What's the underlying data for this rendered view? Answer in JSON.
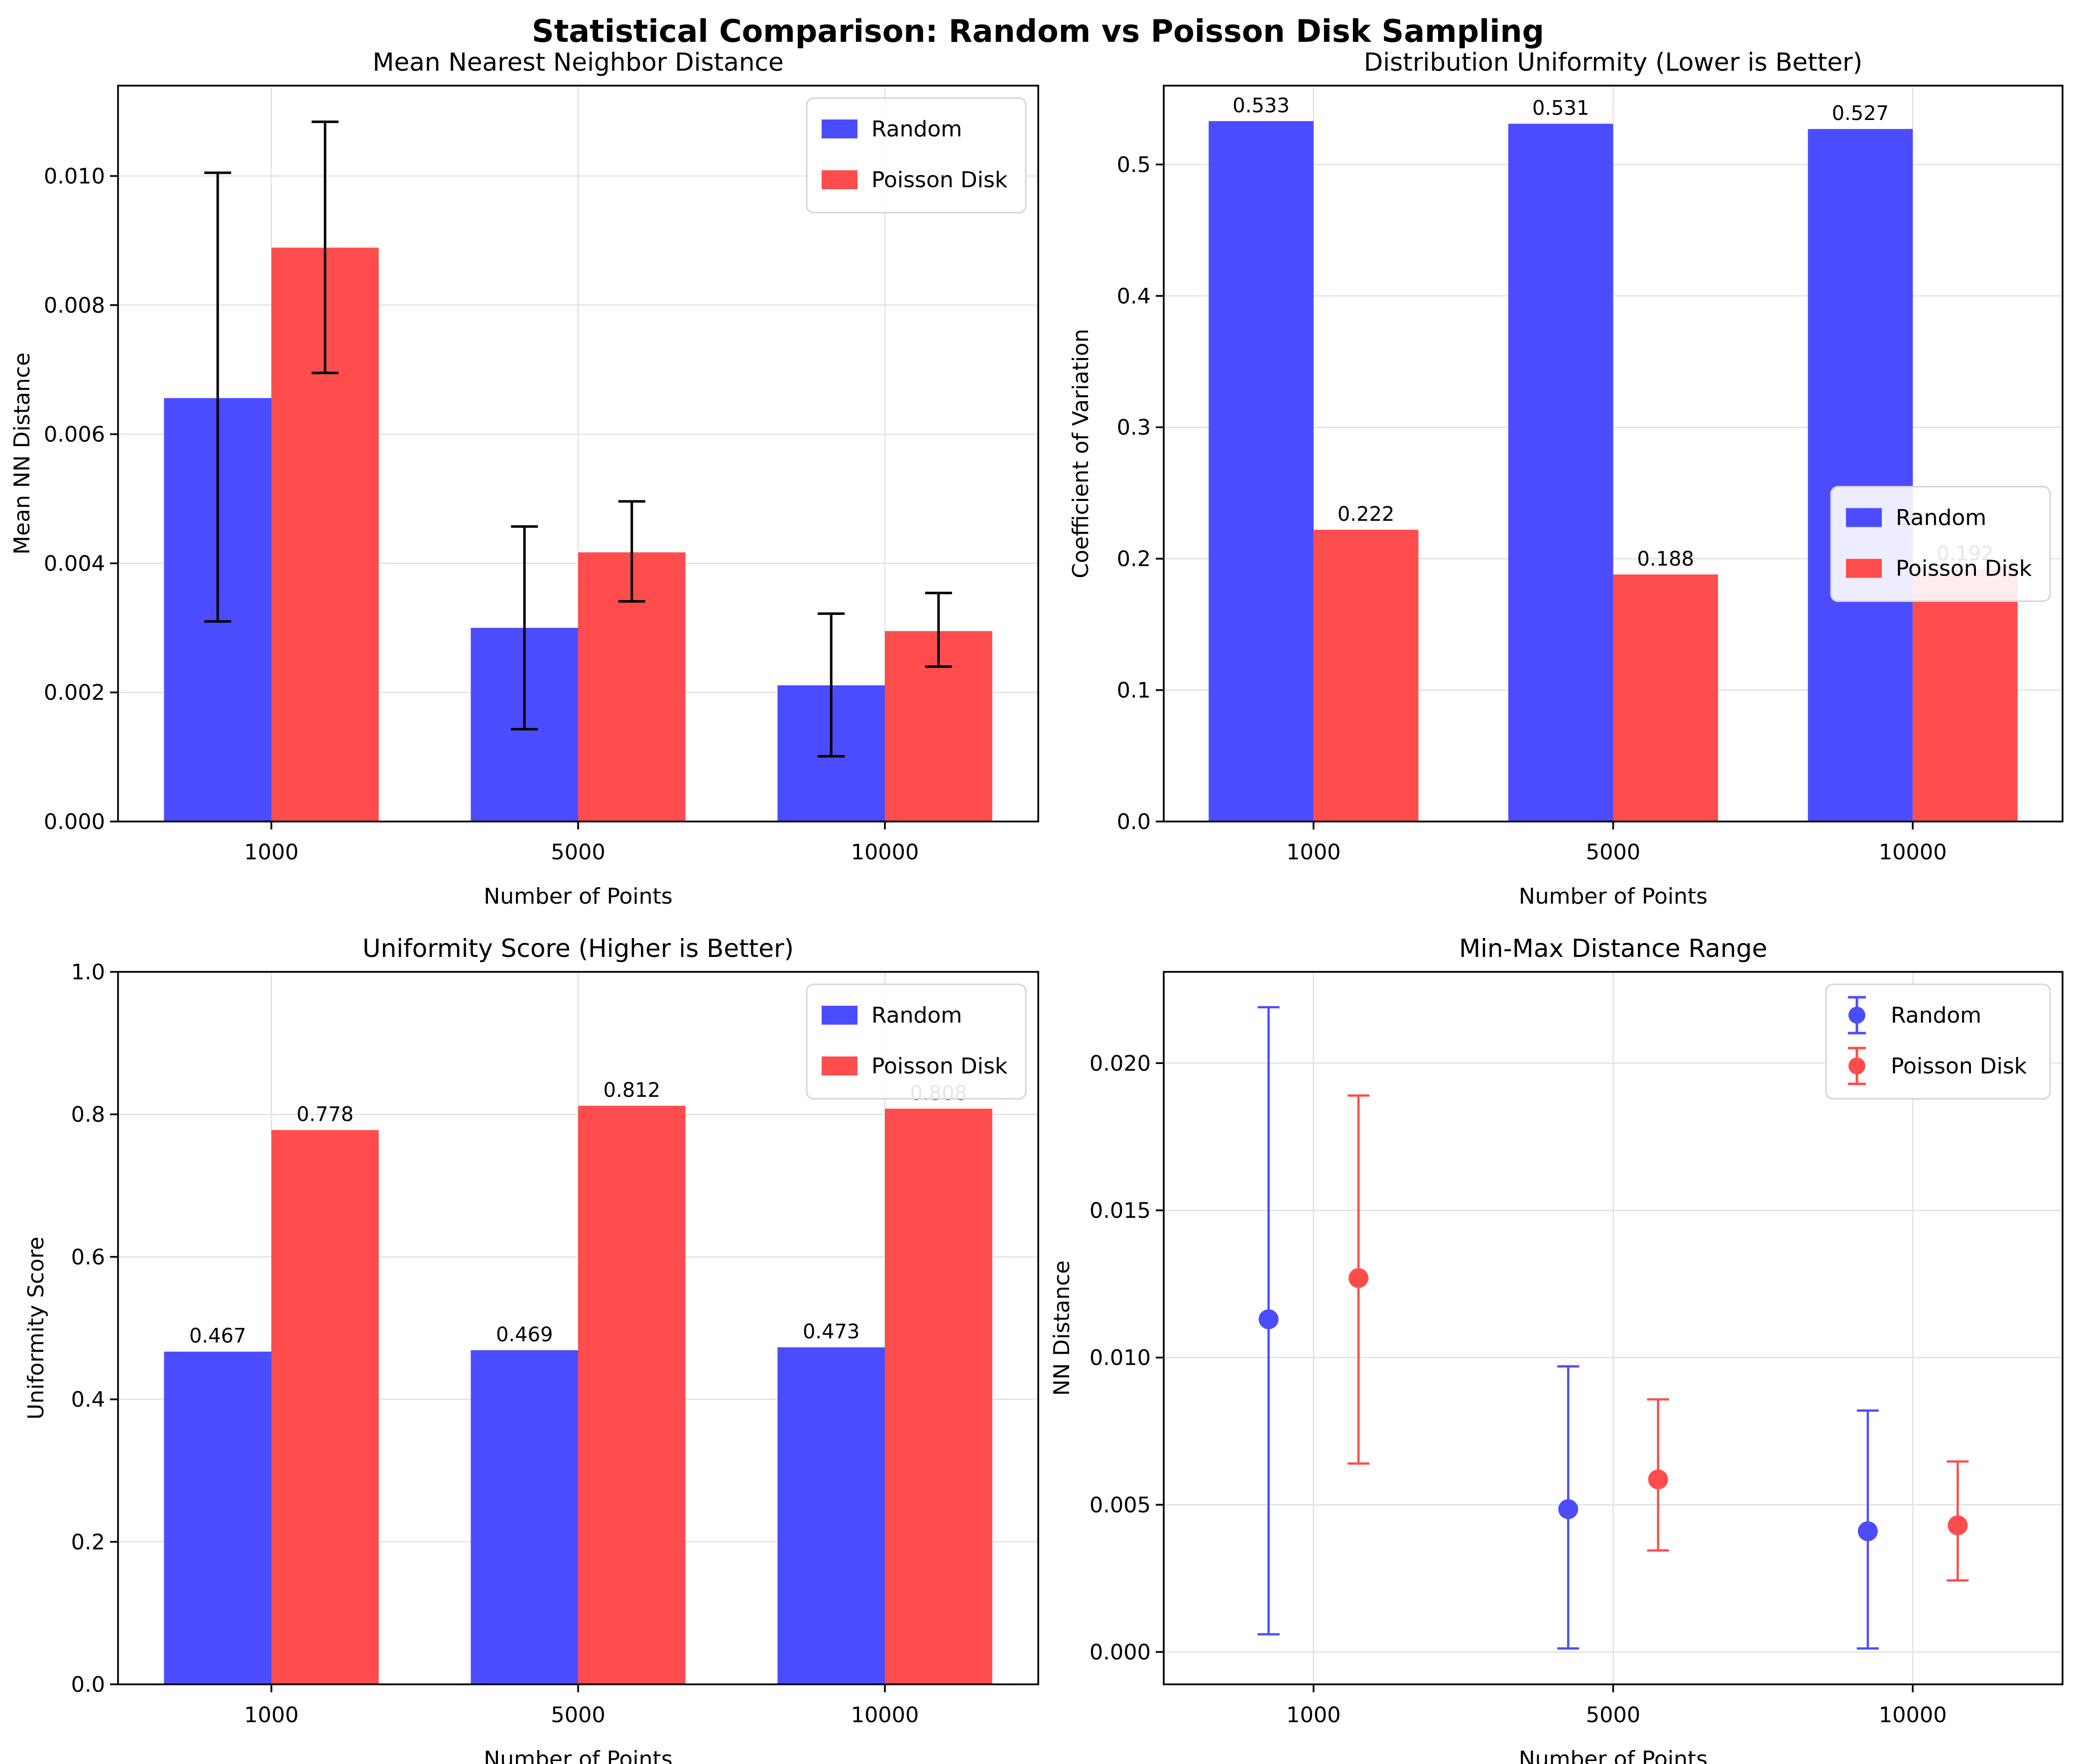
{
  "suptitle": "Statistical Comparison: Random vs Poisson Disk Sampling",
  "colors": {
    "random": "#4C4CFF",
    "poisson": "#FF4C4C",
    "errorbar_black": "#000000",
    "grid": "#E2E2E2",
    "spine": "#000000",
    "legend_border": "#D5D5D5",
    "text": "#000000"
  },
  "legend_labels": [
    "Random",
    "Poisson Disk"
  ],
  "chart_data": [
    {
      "id": "mean-nn-distance",
      "type": "bar",
      "title": "Mean Nearest Neighbor Distance",
      "xlabel": "Number of Points",
      "ylabel": "Mean NN Distance",
      "categories": [
        "1000",
        "5000",
        "10000"
      ],
      "ylim": [
        0,
        0.0114
      ],
      "grid": true,
      "legend_loc": "top-right",
      "legend_style": "patch",
      "yticks": [
        {
          "v": 0.0,
          "label": "0.000"
        },
        {
          "v": 0.002,
          "label": "0.002"
        },
        {
          "v": 0.004,
          "label": "0.004"
        },
        {
          "v": 0.006,
          "label": "0.006"
        },
        {
          "v": 0.008,
          "label": "0.008"
        },
        {
          "v": 0.01,
          "label": "0.010"
        }
      ],
      "series": [
        {
          "name": "Random",
          "color_key": "random",
          "values": [
            0.00656,
            0.003,
            0.00211
          ],
          "err_low": [
            0.0031,
            0.00143,
            0.00101
          ],
          "err_high": [
            0.01005,
            0.00457,
            0.00322
          ],
          "errorbar_color_key": "errorbar_black"
        },
        {
          "name": "Poisson Disk",
          "color_key": "poisson",
          "values": [
            0.00889,
            0.00417,
            0.00295
          ],
          "err_low": [
            0.00695,
            0.00341,
            0.0024
          ],
          "err_high": [
            0.01084,
            0.00496,
            0.00354
          ],
          "errorbar_color_key": "errorbar_black"
        }
      ]
    },
    {
      "id": "distribution-uniformity",
      "type": "bar",
      "title": "Distribution Uniformity (Lower is Better)",
      "xlabel": "Number of Points",
      "ylabel": "Coefficient of Variation",
      "categories": [
        "1000",
        "5000",
        "10000"
      ],
      "ylim": [
        0,
        0.56
      ],
      "grid": true,
      "legend_loc": "center-right",
      "legend_style": "patch",
      "yticks": [
        {
          "v": 0.0,
          "label": "0.0"
        },
        {
          "v": 0.1,
          "label": "0.1"
        },
        {
          "v": 0.2,
          "label": "0.2"
        },
        {
          "v": 0.3,
          "label": "0.3"
        },
        {
          "v": 0.4,
          "label": "0.4"
        },
        {
          "v": 0.5,
          "label": "0.5"
        }
      ],
      "series": [
        {
          "name": "Random",
          "color_key": "random",
          "values": [
            0.533,
            0.531,
            0.527
          ],
          "labels": [
            "0.533",
            "0.531",
            "0.527"
          ]
        },
        {
          "name": "Poisson Disk",
          "color_key": "poisson",
          "values": [
            0.222,
            0.188,
            0.192
          ],
          "labels": [
            "0.222",
            "0.188",
            "0.192"
          ]
        }
      ]
    },
    {
      "id": "uniformity-score",
      "type": "bar",
      "title": "Uniformity Score (Higher is Better)",
      "xlabel": "Number of Points",
      "ylabel": "Uniformity Score",
      "categories": [
        "1000",
        "5000",
        "10000"
      ],
      "ylim": [
        0,
        1.0
      ],
      "grid": true,
      "legend_loc": "top-right",
      "legend_style": "patch",
      "yticks": [
        {
          "v": 0.0,
          "label": "0.0"
        },
        {
          "v": 0.2,
          "label": "0.2"
        },
        {
          "v": 0.4,
          "label": "0.4"
        },
        {
          "v": 0.6,
          "label": "0.6"
        },
        {
          "v": 0.8,
          "label": "0.8"
        },
        {
          "v": 1.0,
          "label": "1.0"
        }
      ],
      "series": [
        {
          "name": "Random",
          "color_key": "random",
          "values": [
            0.467,
            0.469,
            0.473
          ],
          "labels": [
            "0.467",
            "0.469",
            "0.473"
          ]
        },
        {
          "name": "Poisson Disk",
          "color_key": "poisson",
          "values": [
            0.778,
            0.812,
            0.808
          ],
          "labels": [
            "0.778",
            "0.812",
            "0.808"
          ]
        }
      ]
    },
    {
      "id": "min-max-distance-range",
      "type": "errorbar",
      "title": "Min-Max Distance Range",
      "xlabel": "Number of Points",
      "ylabel": "NN Distance",
      "categories": [
        "1000",
        "5000",
        "10000"
      ],
      "ylim": [
        -0.0011,
        0.0231
      ],
      "grid": true,
      "legend_loc": "top-right",
      "legend_style": "errorbar",
      "point_offset": 0.15,
      "yticks": [
        {
          "v": 0.0,
          "label": "0.000"
        },
        {
          "v": 0.005,
          "label": "0.005"
        },
        {
          "v": 0.01,
          "label": "0.010"
        },
        {
          "v": 0.015,
          "label": "0.015"
        },
        {
          "v": 0.02,
          "label": "0.020"
        }
      ],
      "series": [
        {
          "name": "Random",
          "color_key": "random",
          "values": [
            0.0113,
            0.00485,
            0.0041
          ],
          "err_low": [
            0.0006,
            0.00012,
            0.00012
          ],
          "err_high": [
            0.0219,
            0.0097,
            0.0082
          ]
        },
        {
          "name": "Poisson Disk",
          "color_key": "poisson",
          "values": [
            0.0127,
            0.00586,
            0.0043
          ],
          "err_low": [
            0.0064,
            0.00345,
            0.00243
          ],
          "err_high": [
            0.0189,
            0.00858,
            0.00647
          ]
        }
      ]
    }
  ]
}
